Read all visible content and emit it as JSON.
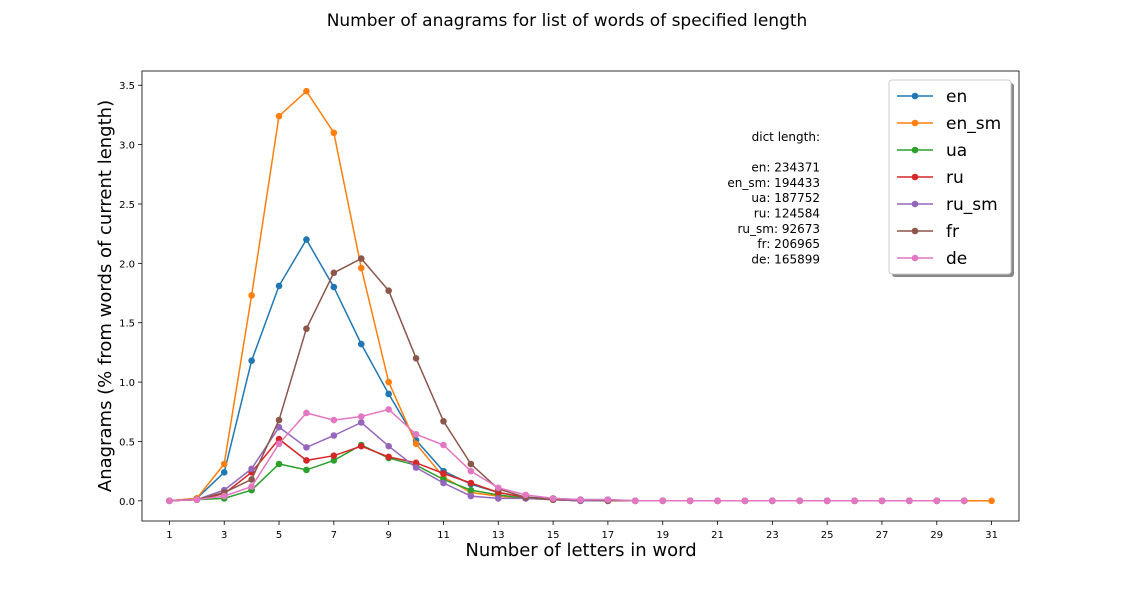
{
  "chart_data": {
    "type": "line",
    "title": "Number of anagrams for list of words of specified length",
    "xlabel": "Number of letters in word",
    "ylabel": "Anagrams (% from words of current length)",
    "xlim": [
      0,
      32
    ],
    "ylim": [
      -0.17,
      3.62
    ],
    "xticks": [
      1,
      3,
      5,
      7,
      9,
      11,
      13,
      15,
      17,
      19,
      21,
      23,
      25,
      27,
      29,
      31
    ],
    "yticks": [
      0.0,
      0.5,
      1.0,
      1.5,
      2.0,
      2.5,
      3.0,
      3.5
    ],
    "ytick_labels": [
      "0.0",
      "0.5",
      "1.0",
      "1.5",
      "2.0",
      "2.5",
      "3.0",
      "3.5"
    ],
    "grid": false,
    "legend_position": "top-right",
    "annotation": [
      "dict length:",
      "",
      "en: 234371",
      "en_sm: 194433",
      "ua: 187752",
      "ru: 124584",
      "ru_sm: 92673",
      "fr: 206965",
      "de: 165899"
    ],
    "series": [
      {
        "name": "en",
        "color": "#1f77b4",
        "x": [
          1,
          2,
          3,
          4,
          5,
          6,
          7,
          8,
          9,
          10,
          11,
          12,
          13,
          14,
          15,
          16,
          17,
          18,
          19,
          20,
          21,
          22,
          23,
          24,
          25,
          26,
          27,
          28,
          29,
          30
        ],
        "y": [
          0,
          0.02,
          0.24,
          1.18,
          1.81,
          2.2,
          1.8,
          1.32,
          0.9,
          0.51,
          0.25,
          0.14,
          0.07,
          0.03,
          0.02,
          0.01,
          0.01,
          0,
          0,
          0,
          0,
          0,
          0,
          0,
          0,
          0,
          0,
          0,
          0,
          0
        ]
      },
      {
        "name": "en_sm",
        "color": "#ff7f0e",
        "x": [
          1,
          2,
          3,
          4,
          5,
          6,
          7,
          8,
          9,
          10,
          11,
          12,
          13,
          14,
          15,
          16,
          17,
          18,
          19,
          20,
          21,
          22,
          23,
          24,
          25,
          26,
          27,
          28,
          29,
          30,
          31
        ],
        "y": [
          0,
          0.02,
          0.31,
          1.73,
          3.24,
          3.45,
          3.1,
          1.96,
          1.0,
          0.48,
          0.2,
          0.07,
          0.04,
          0.02,
          0.01,
          0,
          0,
          0,
          0,
          0,
          0,
          0,
          0,
          0,
          0,
          0,
          0,
          0,
          0,
          0,
          0
        ]
      },
      {
        "name": "ua",
        "color": "#2ca02c",
        "x": [
          1,
          2,
          3,
          4,
          5,
          6,
          7,
          8,
          9,
          10,
          11,
          12,
          13,
          14,
          15,
          16,
          17,
          18,
          19,
          20,
          21,
          22,
          23,
          24,
          25,
          26,
          27,
          28,
          29,
          30
        ],
        "y": [
          0,
          0.01,
          0.02,
          0.09,
          0.31,
          0.26,
          0.34,
          0.47,
          0.36,
          0.3,
          0.18,
          0.09,
          0.05,
          0.02,
          0.01,
          0,
          0,
          0,
          0,
          0,
          0,
          0,
          0,
          0,
          0,
          0,
          0,
          0,
          0,
          0
        ]
      },
      {
        "name": "ru",
        "color": "#d62728",
        "x": [
          1,
          2,
          3,
          4,
          5,
          6,
          7,
          8,
          9,
          10,
          11,
          12,
          13,
          14,
          15,
          16,
          17,
          18,
          19,
          20,
          21,
          22,
          23,
          24,
          25,
          26,
          27,
          28,
          29,
          30
        ],
        "y": [
          0,
          0.01,
          0.06,
          0.24,
          0.52,
          0.34,
          0.38,
          0.46,
          0.37,
          0.32,
          0.23,
          0.15,
          0.07,
          0.03,
          0.01,
          0,
          0,
          0,
          0,
          0,
          0,
          0,
          0,
          0,
          0,
          0,
          0,
          0,
          0,
          0
        ]
      },
      {
        "name": "ru_sm",
        "color": "#9467bd",
        "x": [
          1,
          2,
          3,
          4,
          5,
          6,
          7,
          8,
          9,
          10,
          11,
          12,
          13,
          14,
          15,
          16,
          17,
          18,
          19,
          20,
          21,
          22,
          23,
          24,
          25,
          26,
          27,
          28,
          29,
          30
        ],
        "y": [
          0,
          0.01,
          0.09,
          0.27,
          0.62,
          0.45,
          0.55,
          0.66,
          0.46,
          0.28,
          0.15,
          0.04,
          0.02,
          0.02,
          0.01,
          0,
          0,
          0,
          0,
          0,
          0,
          0,
          0,
          0,
          0,
          0,
          0,
          0,
          0,
          0
        ]
      },
      {
        "name": "fr",
        "color": "#8c564b",
        "x": [
          1,
          2,
          3,
          4,
          5,
          6,
          7,
          8,
          9,
          10,
          11,
          12,
          13,
          14,
          15,
          16,
          17,
          18,
          19,
          20,
          21,
          22,
          23,
          24,
          25,
          26,
          27,
          28,
          29,
          30
        ],
        "y": [
          0,
          0.01,
          0.07,
          0.18,
          0.68,
          1.45,
          1.92,
          2.04,
          1.77,
          1.2,
          0.67,
          0.31,
          0.1,
          0.03,
          0.01,
          0.01,
          0,
          0,
          0,
          0,
          0,
          0,
          0,
          0,
          0,
          0,
          0,
          0,
          0,
          0
        ]
      },
      {
        "name": "de",
        "color": "#e377c2",
        "x": [
          1,
          2,
          3,
          4,
          5,
          6,
          7,
          8,
          9,
          10,
          11,
          12,
          13,
          14,
          15,
          16,
          17,
          18,
          19,
          20,
          21,
          22,
          23,
          24,
          25,
          26,
          27,
          28,
          29,
          30
        ],
        "y": [
          0,
          0.01,
          0.04,
          0.12,
          0.48,
          0.74,
          0.68,
          0.71,
          0.77,
          0.56,
          0.47,
          0.25,
          0.11,
          0.05,
          0.02,
          0.01,
          0.01,
          0,
          0,
          0,
          0,
          0,
          0,
          0,
          0,
          0,
          0,
          0,
          0,
          0
        ]
      }
    ]
  }
}
